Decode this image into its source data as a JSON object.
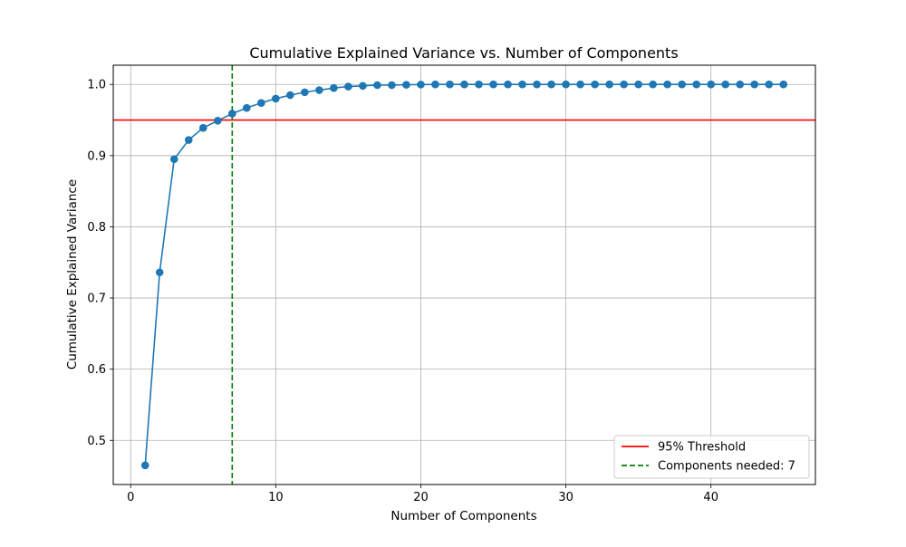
{
  "chart_data": {
    "type": "line",
    "title": "Cumulative Explained Variance vs. Number of Components",
    "xlabel": "Number of Components",
    "ylabel": "Cumulative Explained Variance",
    "xlim": [
      -1.2,
      47.2
    ],
    "ylim": [
      0.438,
      1.027
    ],
    "x_ticks": [
      0,
      10,
      20,
      30,
      40
    ],
    "y_ticks": [
      0.5,
      0.6,
      0.7,
      0.8,
      0.9,
      1.0
    ],
    "y_tick_labels": [
      "0.5",
      "0.6",
      "0.7",
      "0.8",
      "0.9",
      "1.0"
    ],
    "grid": true,
    "legend_position": "lower-right",
    "series": [
      {
        "name": "",
        "color": "#1f77b4",
        "marker": "circle",
        "x": [
          1,
          2,
          3,
          4,
          5,
          6,
          7,
          8,
          9,
          10,
          11,
          12,
          13,
          14,
          15,
          16,
          17,
          18,
          19,
          20,
          21,
          22,
          23,
          24,
          25,
          26,
          27,
          28,
          29,
          30,
          31,
          32,
          33,
          34,
          35,
          36,
          37,
          38,
          39,
          40,
          41,
          42,
          43,
          44,
          45
        ],
        "y": [
          0.465,
          0.736,
          0.895,
          0.922,
          0.939,
          0.949,
          0.959,
          0.967,
          0.974,
          0.98,
          0.985,
          0.989,
          0.992,
          0.995,
          0.997,
          0.998,
          0.999,
          0.999,
          0.9995,
          0.9998,
          1.0,
          1.0,
          1.0,
          1.0,
          1.0,
          1.0,
          1.0,
          1.0,
          1.0,
          1.0,
          1.0,
          1.0,
          1.0,
          1.0,
          1.0,
          1.0,
          1.0,
          1.0,
          1.0,
          1.0,
          1.0,
          1.0,
          1.0,
          1.0,
          1.0
        ]
      }
    ],
    "reference_lines": [
      {
        "orientation": "horizontal",
        "value": 0.95,
        "color": "#ff0000",
        "style": "solid",
        "name": "95% Threshold"
      },
      {
        "orientation": "vertical",
        "value": 7,
        "color": "#008000",
        "style": "dashed",
        "name": "Components needed: 7"
      }
    ],
    "legend": [
      "95% Threshold",
      "Components needed: 7"
    ]
  }
}
